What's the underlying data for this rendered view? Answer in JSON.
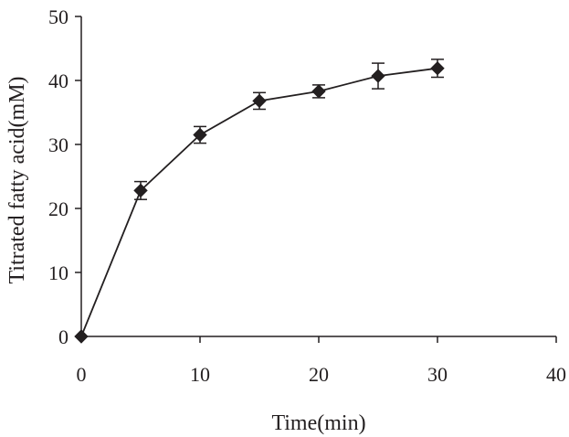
{
  "chart_data": {
    "type": "line",
    "title": "",
    "xlabel": "Time(min)",
    "ylabel": "Titrated fatty acid(mM)",
    "xlim": [
      0,
      40
    ],
    "ylim": [
      0,
      50
    ],
    "xticks": [
      "0",
      "10",
      "20",
      "30",
      "40"
    ],
    "yticks": [
      "0",
      "10",
      "20",
      "30",
      "40",
      "50"
    ],
    "grid": false,
    "legend": "none",
    "marker": "diamond",
    "color": "#231f20",
    "series": [
      {
        "x": [
          0,
          5,
          10,
          15,
          20,
          25,
          30
        ],
        "y": [
          0,
          22.8,
          31.5,
          36.8,
          38.3,
          40.7,
          41.9
        ],
        "error": [
          0,
          1.4,
          1.3,
          1.3,
          1.0,
          2.0,
          1.4
        ]
      }
    ]
  }
}
